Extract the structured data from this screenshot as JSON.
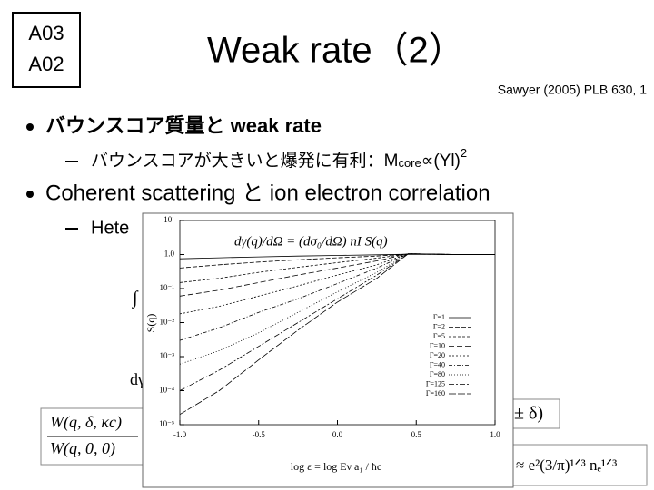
{
  "badge": [
    "A03",
    "A02"
  ],
  "title": "Weak rate（2）",
  "reference": "Sawyer (2005) PLB 630, 1",
  "bullet_1": "バウンスコア質量と weak rate",
  "sub_1": {
    "text": "バウンスコアが大きいと爆発に有利：M",
    "subscript": "core",
    "rest": "∝(Yl)",
    "superscript": "2"
  },
  "bullet_2": "Coherent scattering と ion electron correlation",
  "sub_2": "Hete",
  "formulas": [
    "∫ d",
    "dγ",
    "W(q, δ, κc)",
    "W(q, 0, 0)",
    "± δ)",
    "≈ e²(3/π)¹ᐟ³ nₑ¹ᐟ³"
  ],
  "chart_data": {
    "type": "line",
    "equation": "dγ(q)/dΩ = (dσ₀/dΩ) nI S(q)",
    "x_label": "log ε = log Eν a₁ / ħc",
    "y_label": "S(q)",
    "log_y": true,
    "xlim": [
      -1,
      1
    ],
    "ylim": [
      1e-05,
      10
    ],
    "xticks": [
      {
        "value": -1,
        "label": "-1.0"
      },
      {
        "value": -0.5,
        "label": "-0.5"
      },
      {
        "value": 0,
        "label": "0.0"
      },
      {
        "value": 0.5,
        "label": "0.5"
      },
      {
        "value": 1,
        "label": "1.0"
      }
    ],
    "yticks": [
      {
        "value": 10,
        "label": "10¹"
      },
      {
        "value": 1,
        "label": "1.0"
      },
      {
        "value": 0.1,
        "label": "10⁻¹"
      },
      {
        "value": 0.01,
        "label": "10⁻²"
      },
      {
        "value": 0.001,
        "label": "10⁻³"
      },
      {
        "value": 0.0001,
        "label": "10⁻⁴"
      },
      {
        "value": 1e-05,
        "label": "10⁻⁵"
      }
    ],
    "x": [
      -1,
      -0.75,
      -0.5,
      -0.25,
      0,
      0.25,
      0.45,
      0.75,
      1
    ],
    "series": [
      {
        "name": "Γ=1",
        "color": "#000000",
        "values": [
          0.75,
          0.8,
          0.85,
          0.9,
          0.94,
          0.98,
          1.02,
          1,
          1
        ]
      },
      {
        "name": "Γ=2",
        "color": "#000000",
        "values": [
          0.4,
          0.5,
          0.6,
          0.7,
          0.8,
          0.9,
          1.03,
          1,
          1
        ]
      },
      {
        "name": "Γ=5",
        "color": "#000000",
        "values": [
          0.15,
          0.2,
          0.3,
          0.42,
          0.58,
          0.78,
          1.04,
          1,
          1
        ]
      },
      {
        "name": "Γ=10",
        "color": "#000000",
        "values": [
          0.06,
          0.09,
          0.15,
          0.25,
          0.4,
          0.65,
          1.05,
          1,
          1
        ]
      },
      {
        "name": "Γ=20",
        "color": "#000000",
        "values": [
          0.018,
          0.03,
          0.06,
          0.12,
          0.25,
          0.5,
          1.05,
          1,
          1
        ]
      },
      {
        "name": "Γ=40",
        "color": "#000000",
        "values": [
          0.003,
          0.007,
          0.02,
          0.05,
          0.14,
          0.4,
          1.06,
          1,
          1
        ]
      },
      {
        "name": "Γ=80",
        "color": "#000000",
        "values": [
          0.0006,
          0.0015,
          0.005,
          0.02,
          0.08,
          0.3,
          1.06,
          1,
          1
        ]
      },
      {
        "name": "Γ=125",
        "color": "#000000",
        "values": [
          0.0001,
          0.0004,
          0.002,
          0.01,
          0.05,
          0.25,
          1.06,
          1,
          1
        ]
      },
      {
        "name": "Γ=160",
        "color": "#000000",
        "values": [
          2e-05,
          0.0001,
          0.0008,
          0.006,
          0.04,
          0.2,
          1.06,
          1,
          1
        ]
      }
    ]
  }
}
